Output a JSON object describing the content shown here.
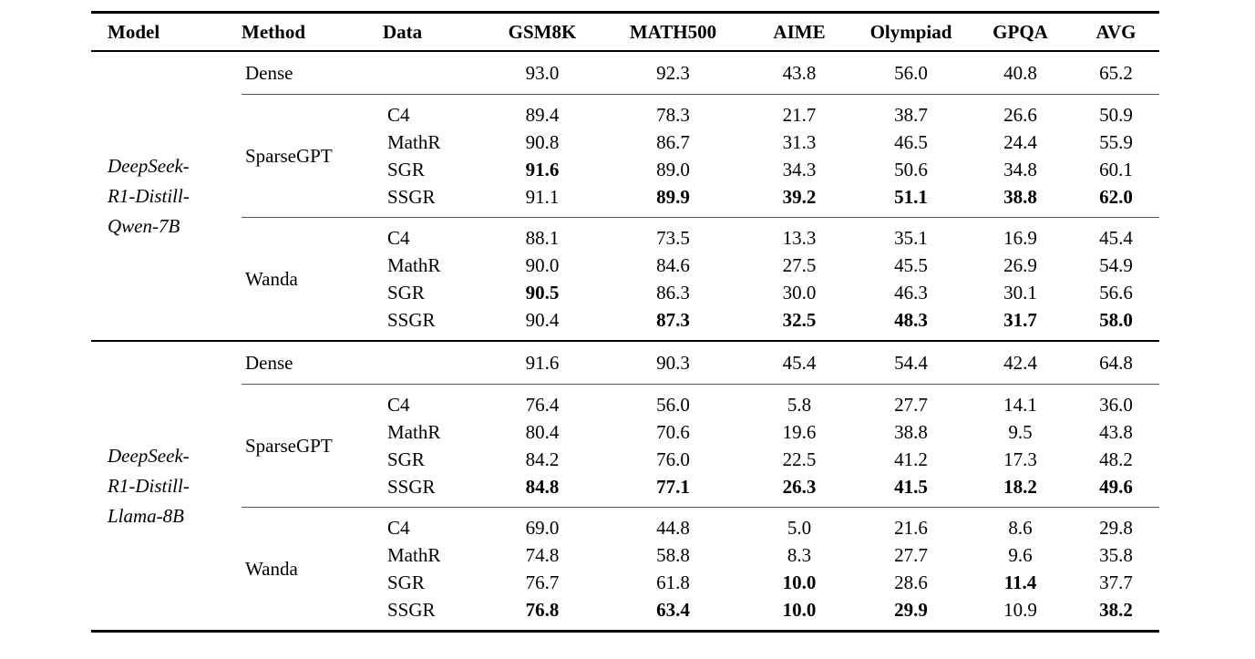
{
  "table": {
    "headers": [
      "Model",
      "Method",
      "Data",
      "GSM8K",
      "MATH500",
      "AIME",
      "Olympiad",
      "GPQA",
      "AVG"
    ],
    "text_color": "#000000",
    "background_color": "#ffffff",
    "groups": [
      {
        "model": "DeepSeek-R1-Distill-Qwen-7B",
        "model_lines": [
          "DeepSeek-",
          "R1-Distill-",
          "Qwen-7B"
        ],
        "blocks": [
          {
            "method": "Dense",
            "rows": [
              {
                "data": "",
                "values": [
                  "93.0",
                  "92.3",
                  "43.8",
                  "56.0",
                  "40.8",
                  "65.2"
                ],
                "bold": [
                  0,
                  0,
                  0,
                  0,
                  0,
                  0
                ]
              }
            ]
          },
          {
            "method": "SparseGPT",
            "rows": [
              {
                "data": "C4",
                "values": [
                  "89.4",
                  "78.3",
                  "21.7",
                  "38.7",
                  "26.6",
                  "50.9"
                ],
                "bold": [
                  0,
                  0,
                  0,
                  0,
                  0,
                  0
                ]
              },
              {
                "data": "MathR",
                "values": [
                  "90.8",
                  "86.7",
                  "31.3",
                  "46.5",
                  "24.4",
                  "55.9"
                ],
                "bold": [
                  0,
                  0,
                  0,
                  0,
                  0,
                  0
                ]
              },
              {
                "data": "SGR",
                "values": [
                  "91.6",
                  "89.0",
                  "34.3",
                  "50.6",
                  "34.8",
                  "60.1"
                ],
                "bold": [
                  1,
                  0,
                  0,
                  0,
                  0,
                  0
                ]
              },
              {
                "data": "SSGR",
                "values": [
                  "91.1",
                  "89.9",
                  "39.2",
                  "51.1",
                  "38.8",
                  "62.0"
                ],
                "bold": [
                  0,
                  1,
                  1,
                  1,
                  1,
                  1
                ]
              }
            ]
          },
          {
            "method": "Wanda",
            "rows": [
              {
                "data": "C4",
                "values": [
                  "88.1",
                  "73.5",
                  "13.3",
                  "35.1",
                  "16.9",
                  "45.4"
                ],
                "bold": [
                  0,
                  0,
                  0,
                  0,
                  0,
                  0
                ]
              },
              {
                "data": "MathR",
                "values": [
                  "90.0",
                  "84.6",
                  "27.5",
                  "45.5",
                  "26.9",
                  "54.9"
                ],
                "bold": [
                  0,
                  0,
                  0,
                  0,
                  0,
                  0
                ]
              },
              {
                "data": "SGR",
                "values": [
                  "90.5",
                  "86.3",
                  "30.0",
                  "46.3",
                  "30.1",
                  "56.6"
                ],
                "bold": [
                  1,
                  0,
                  0,
                  0,
                  0,
                  0
                ]
              },
              {
                "data": "SSGR",
                "values": [
                  "90.4",
                  "87.3",
                  "32.5",
                  "48.3",
                  "31.7",
                  "58.0"
                ],
                "bold": [
                  0,
                  1,
                  1,
                  1,
                  1,
                  1
                ]
              }
            ]
          }
        ]
      },
      {
        "model": "DeepSeek-R1-Distill-Llama-8B",
        "model_lines": [
          "DeepSeek-",
          "R1-Distill-",
          "Llama-8B"
        ],
        "blocks": [
          {
            "method": "Dense",
            "rows": [
              {
                "data": "",
                "values": [
                  "91.6",
                  "90.3",
                  "45.4",
                  "54.4",
                  "42.4",
                  "64.8"
                ],
                "bold": [
                  0,
                  0,
                  0,
                  0,
                  0,
                  0
                ]
              }
            ]
          },
          {
            "method": "SparseGPT",
            "rows": [
              {
                "data": "C4",
                "values": [
                  "76.4",
                  "56.0",
                  "5.8",
                  "27.7",
                  "14.1",
                  "36.0"
                ],
                "bold": [
                  0,
                  0,
                  0,
                  0,
                  0,
                  0
                ]
              },
              {
                "data": "MathR",
                "values": [
                  "80.4",
                  "70.6",
                  "19.6",
                  "38.8",
                  "9.5",
                  "43.8"
                ],
                "bold": [
                  0,
                  0,
                  0,
                  0,
                  0,
                  0
                ]
              },
              {
                "data": "SGR",
                "values": [
                  "84.2",
                  "76.0",
                  "22.5",
                  "41.2",
                  "17.3",
                  "48.2"
                ],
                "bold": [
                  0,
                  0,
                  0,
                  0,
                  0,
                  0
                ]
              },
              {
                "data": "SSGR",
                "values": [
                  "84.8",
                  "77.1",
                  "26.3",
                  "41.5",
                  "18.2",
                  "49.6"
                ],
                "bold": [
                  1,
                  1,
                  1,
                  1,
                  1,
                  1
                ]
              }
            ]
          },
          {
            "method": "Wanda",
            "rows": [
              {
                "data": "C4",
                "values": [
                  "69.0",
                  "44.8",
                  "5.0",
                  "21.6",
                  "8.6",
                  "29.8"
                ],
                "bold": [
                  0,
                  0,
                  0,
                  0,
                  0,
                  0
                ]
              },
              {
                "data": "MathR",
                "values": [
                  "74.8",
                  "58.8",
                  "8.3",
                  "27.7",
                  "9.6",
                  "35.8"
                ],
                "bold": [
                  0,
                  0,
                  0,
                  0,
                  0,
                  0
                ]
              },
              {
                "data": "SGR",
                "values": [
                  "76.7",
                  "61.8",
                  "10.0",
                  "28.6",
                  "11.4",
                  "37.7"
                ],
                "bold": [
                  0,
                  0,
                  1,
                  0,
                  1,
                  0
                ]
              },
              {
                "data": "SSGR",
                "values": [
                  "76.8",
                  "63.4",
                  "10.0",
                  "29.9",
                  "10.9",
                  "38.2"
                ],
                "bold": [
                  1,
                  1,
                  1,
                  1,
                  0,
                  1
                ]
              }
            ]
          }
        ]
      }
    ]
  }
}
